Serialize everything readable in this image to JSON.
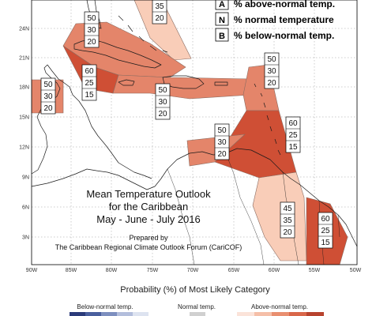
{
  "legend": {
    "items": [
      {
        "letter": "A",
        "text": "% above-normal temp."
      },
      {
        "letter": "N",
        "text": "% normal temperature"
      },
      {
        "letter": "B",
        "text": "% below-normal temp."
      }
    ]
  },
  "title": {
    "line1": "Mean Temperature Outlook",
    "line2": "for the Caribbean",
    "line3": "May - June - July 2016"
  },
  "credit": {
    "line1": "Prepared by",
    "line2": "The Caribbean Regional Climate Outlook Forum (CariCOF)"
  },
  "latitude_labels": [
    "24N",
    "21N",
    "18N",
    "15N",
    "12N",
    "9N",
    "6N",
    "3N"
  ],
  "longitude_labels": [
    "90W",
    "85W",
    "80W",
    "75W",
    "70W",
    "65W",
    "60W",
    "55W",
    "50W"
  ],
  "forecast_boxes": [
    {
      "region": "bahamas-north",
      "values": [
        "35",
        "20"
      ],
      "truncated_top": true
    },
    {
      "region": "cuba",
      "values": [
        "50",
        "30",
        "20"
      ]
    },
    {
      "region": "jamaica-cayman",
      "values": [
        "60",
        "25",
        "15"
      ]
    },
    {
      "region": "belize",
      "values": [
        "50",
        "30",
        "20"
      ]
    },
    {
      "region": "hispaniola-puerto-rico",
      "values": [
        "50",
        "30",
        "20"
      ]
    },
    {
      "region": "leeward-islands",
      "values": [
        "50",
        "30",
        "20"
      ]
    },
    {
      "region": "windward-islands",
      "values": [
        "60",
        "25",
        "15"
      ]
    },
    {
      "region": "abc-islands",
      "values": [
        "50",
        "30",
        "20"
      ]
    },
    {
      "region": "guyana",
      "values": [
        "45",
        "35",
        "20"
      ]
    },
    {
      "region": "suriname-guiana",
      "values": [
        "60",
        "25",
        "15"
      ]
    }
  ],
  "probability_legend": {
    "title": "Probability (%) of Most Likely Category",
    "categories": [
      "Below-normal temp.",
      "Normal temp.",
      "Above-normal temp."
    ],
    "colors": {
      "below": [
        "#2b3b7a",
        "#4a5f9e",
        "#7d8fbf",
        "#b3bedc",
        "#dde3f0"
      ],
      "normal": [
        "#d0d0d0"
      ],
      "above": [
        "#fbe3d9",
        "#f5bfa8",
        "#e98f70",
        "#d9674a",
        "#b8432e"
      ]
    }
  },
  "colors": {
    "above40": "#f9cdb8",
    "above50": "#e4856a",
    "above60": "#cf4f35"
  }
}
